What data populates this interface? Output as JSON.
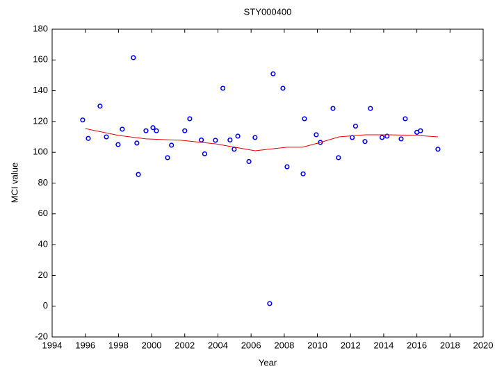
{
  "chart_data": {
    "type": "scatter",
    "title": "STY000400",
    "x_label": "Year",
    "y_label": "MCI value",
    "xlim": [
      1994,
      2020
    ],
    "xticks": [
      1994,
      1996,
      1998,
      2000,
      2002,
      2004,
      2006,
      2008,
      2010,
      2012,
      2014,
      2016,
      2018,
      2020
    ],
    "ylim": [
      -20,
      180
    ],
    "yticks": [
      -20,
      0,
      20,
      40,
      60,
      80,
      100,
      120,
      140,
      160,
      180
    ],
    "series": [
      {
        "type": "scatter",
        "color": "#0000ee",
        "x": [
          1995.84,
          1996.18,
          1996.89,
          1997.27,
          1997.98,
          1998.23,
          1998.9,
          1999.11,
          1999.2,
          1999.66,
          2000.08,
          2000.29,
          2000.96,
          2001.2,
          2002.0,
          2002.3,
          2003.0,
          2003.2,
          2003.85,
          2004.3,
          2004.73,
          2004.98,
          2005.2,
          2005.87,
          2006.24,
          2007.12,
          2007.33,
          2007.92,
          2008.17,
          2009.14,
          2009.22,
          2009.93,
          2010.18,
          2010.94,
          2011.27,
          2012.1,
          2012.3,
          2012.87,
          2013.2,
          2013.9,
          2014.2,
          2015.05,
          2015.3,
          2016.0,
          2016.22,
          2017.27
        ],
        "values": [
          121,
          109,
          130,
          110,
          105,
          115,
          161.5,
          106,
          85.6,
          114,
          116,
          114,
          96.5,
          104.6,
          114,
          121.8,
          108,
          99,
          107.8,
          141.6,
          108,
          102,
          110.5,
          94,
          109.6,
          1.7,
          151,
          141.6,
          90.6,
          86,
          121.8,
          111.4,
          106.4,
          128.5,
          96.5,
          109.6,
          117,
          107,
          128.5,
          109.6,
          110.5,
          108.7,
          121.8,
          113,
          114,
          102
        ]
      },
      {
        "type": "line",
        "color": "#ee0000",
        "x": [
          1996.0,
          1998.0,
          1999.66,
          2001.76,
          2003.85,
          2006.24,
          2008.17,
          2009.1,
          2010.18,
          2011.3,
          2012.9,
          2014.3,
          2016.0,
          2017.27
        ],
        "values": [
          115.4,
          111,
          108.7,
          107.8,
          105.5,
          101,
          103.3,
          103.3,
          106.4,
          110,
          111.4,
          111.4,
          111,
          110
        ]
      }
    ]
  }
}
